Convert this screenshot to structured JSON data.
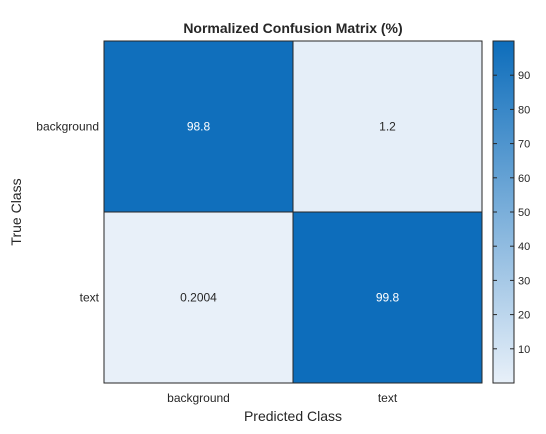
{
  "chart_data": {
    "type": "heatmap",
    "title": "Normalized Confusion Matrix (%)",
    "xlabel": "Predicted Class",
    "ylabel": "True Class",
    "x_categories": [
      "background",
      "text"
    ],
    "y_categories": [
      "background",
      "text"
    ],
    "values": [
      [
        98.8,
        1.2
      ],
      [
        0.2004,
        99.8
      ]
    ],
    "cell_labels": [
      [
        "98.8",
        "1.2"
      ],
      [
        "0.2004",
        "99.8"
      ]
    ],
    "colorbar": {
      "range": [
        0,
        100
      ],
      "ticks": [
        10,
        20,
        30,
        40,
        50,
        60,
        70,
        80,
        90
      ],
      "low_color": "#e8f0f9",
      "high_color": "#0d6dbb"
    },
    "label_colors": {
      "on_dark": "#ffffff",
      "on_light": "#262626"
    }
  }
}
